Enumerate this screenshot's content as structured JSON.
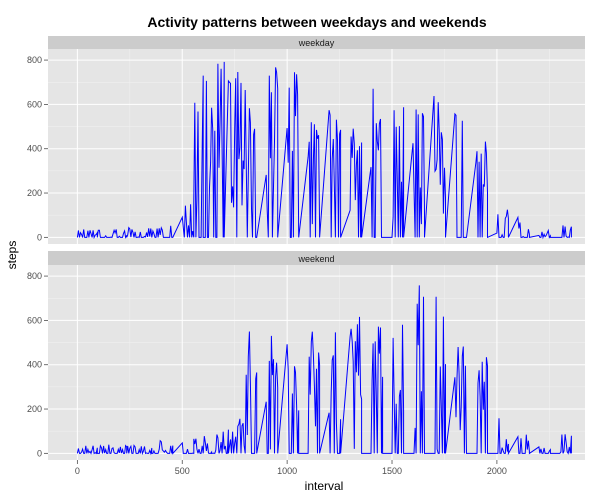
{
  "chart_data": {
    "type": "line",
    "title": "Activity patterns between weekdays and weekends",
    "xlabel": "interval",
    "ylabel": "steps",
    "xlim": [
      -140,
      2420
    ],
    "ylim": [
      -30,
      850
    ],
    "x_ticks": [
      0,
      500,
      1000,
      1500,
      2000
    ],
    "y_ticks": [
      0,
      200,
      400,
      600,
      800
    ],
    "grid": true,
    "line_color": "#0000ff",
    "panel_background": "#e5e5e5",
    "strip_background": "#cccccc",
    "grid_color": "#ffffff",
    "panels": [
      {
        "label": "weekday",
        "segments": [
          {
            "start": 0,
            "end": 95,
            "max": 80
          },
          {
            "start": 100,
            "end": 235,
            "max": 45
          },
          {
            "start": 240,
            "end": 355,
            "max": 45
          },
          {
            "start": 360,
            "end": 455,
            "max": 60
          },
          {
            "start": 500,
            "end": 555,
            "max": 160
          },
          {
            "start": 555,
            "end": 600,
            "max": 790
          },
          {
            "start": 610,
            "end": 700,
            "max": 800
          },
          {
            "start": 720,
            "end": 810,
            "max": 760
          },
          {
            "start": 820,
            "end": 855,
            "max": 600
          },
          {
            "start": 900,
            "end": 955,
            "max": 800
          },
          {
            "start": 1000,
            "end": 1055,
            "max": 750
          },
          {
            "start": 1100,
            "end": 1155,
            "max": 630
          },
          {
            "start": 1200,
            "end": 1255,
            "max": 590
          },
          {
            "start": 1300,
            "end": 1355,
            "max": 500
          },
          {
            "start": 1400,
            "end": 1455,
            "max": 710
          },
          {
            "start": 1500,
            "end": 1555,
            "max": 600
          },
          {
            "start": 1600,
            "end": 1655,
            "max": 590
          },
          {
            "start": 1700,
            "end": 1755,
            "max": 640
          },
          {
            "start": 1800,
            "end": 1855,
            "max": 580
          },
          {
            "start": 1900,
            "end": 1955,
            "max": 440
          },
          {
            "start": 2000,
            "end": 2055,
            "max": 150
          },
          {
            "start": 2100,
            "end": 2155,
            "max": 130
          },
          {
            "start": 2200,
            "end": 2255,
            "max": 50
          },
          {
            "start": 2300,
            "end": 2355,
            "max": 55
          }
        ]
      },
      {
        "label": "weekend",
        "segments": [
          {
            "start": 0,
            "end": 95,
            "max": 40
          },
          {
            "start": 100,
            "end": 235,
            "max": 40
          },
          {
            "start": 240,
            "end": 355,
            "max": 40
          },
          {
            "start": 360,
            "end": 455,
            "max": 60
          },
          {
            "start": 500,
            "end": 555,
            "max": 50
          },
          {
            "start": 555,
            "end": 640,
            "max": 90
          },
          {
            "start": 650,
            "end": 720,
            "max": 110
          },
          {
            "start": 730,
            "end": 800,
            "max": 180
          },
          {
            "start": 800,
            "end": 855,
            "max": 550
          },
          {
            "start": 900,
            "end": 955,
            "max": 540
          },
          {
            "start": 1000,
            "end": 1055,
            "max": 540
          },
          {
            "start": 1100,
            "end": 1155,
            "max": 560
          },
          {
            "start": 1200,
            "end": 1255,
            "max": 550
          },
          {
            "start": 1300,
            "end": 1355,
            "max": 620
          },
          {
            "start": 1400,
            "end": 1455,
            "max": 600
          },
          {
            "start": 1500,
            "end": 1555,
            "max": 780
          },
          {
            "start": 1600,
            "end": 1655,
            "max": 790
          },
          {
            "start": 1700,
            "end": 1755,
            "max": 760
          },
          {
            "start": 1800,
            "end": 1855,
            "max": 490
          },
          {
            "start": 1900,
            "end": 1955,
            "max": 460
          },
          {
            "start": 2000,
            "end": 2055,
            "max": 180
          },
          {
            "start": 2100,
            "end": 2155,
            "max": 90
          },
          {
            "start": 2200,
            "end": 2255,
            "max": 30
          },
          {
            "start": 2300,
            "end": 2355,
            "max": 130
          }
        ]
      }
    ]
  }
}
